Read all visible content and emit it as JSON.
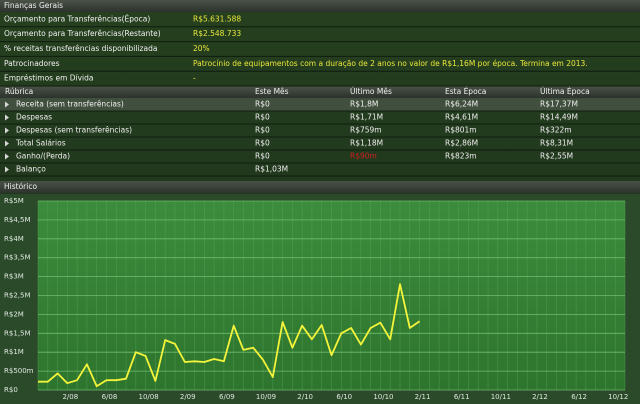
{
  "summary": {
    "title": "Finanças Gerais",
    "rows": [
      [
        "Orçamento para Transferências(Época)",
        "R$5.631.588"
      ],
      [
        "Orçamento para Transferências(Restante)",
        "R$2.548.733"
      ],
      [
        "% receitas transferências disponibilizada",
        "20%"
      ],
      [
        "Patrocinadores",
        "Patrocínio de equipamentos com a duração de 2 anos no valor de R$1,16M por época. Termina em 2013."
      ],
      [
        "Empréstimos em Dívida",
        "-"
      ]
    ]
  },
  "table": {
    "header": [
      "Rúbrica",
      "Este Mês",
      "Último Mês",
      "Esta Época",
      "Última Época"
    ],
    "rows": [
      [
        "Receita (sem transferências)",
        "R$0",
        "R$1,8M",
        "R$6,24M",
        "R$17,37M"
      ],
      [
        "Despesas",
        "R$0",
        "R$1,71M",
        "R$4,61M",
        "R$14,49M"
      ],
      [
        "Despesas (sem transferências)",
        "R$0",
        "R$759m",
        "R$801m",
        "R$322m"
      ],
      [
        "Total Salários",
        "R$0",
        "R$1,18M",
        "R$2,86M",
        "R$8,31M"
      ],
      [
        "Ganho/(Perda)",
        "R$0",
        "R$90m",
        "R$823m",
        "R$2,55M"
      ],
      [
        "Balanço",
        "R$1,03M"
      ]
    ]
  },
  "history": {
    "title": "Histórico"
  },
  "chart_data": {
    "type": "line",
    "color": "#f4f43a",
    "grid": true,
    "categories": [
      null,
      null,
      null,
      "2/08",
      null,
      null,
      null,
      "6/08",
      null,
      null,
      null,
      "10/08",
      null,
      null,
      null,
      "2/09",
      null,
      null,
      null,
      "6/09",
      null,
      null,
      null,
      "10/09",
      null,
      null,
      null,
      "2/10",
      null,
      null,
      null,
      "6/10",
      null,
      null,
      null,
      "10/10",
      null,
      null,
      null,
      "2/11",
      null,
      null,
      null,
      "6/11",
      null,
      null,
      null,
      "10/11",
      null,
      null,
      null,
      "2/12",
      null,
      null,
      null,
      "6/12",
      null,
      null,
      null,
      "10/12",
      null
    ],
    "values": [
      220000,
      220000,
      440000,
      180000,
      260000,
      680000,
      100000,
      260000,
      260000,
      300000,
      1000000,
      900000,
      240000,
      1320000,
      1220000,
      740000,
      760000,
      740000,
      820000,
      760000,
      1700000,
      1060000,
      1120000,
      800000,
      340000,
      1800000,
      1120000,
      1700000,
      1340000,
      1720000,
      920000,
      1500000,
      1640000,
      1200000,
      1640000,
      1780000,
      1340000,
      2800000,
      1640000,
      1820000,
      null,
      null,
      null,
      null,
      null,
      null,
      null,
      null,
      null,
      null,
      null,
      null,
      null,
      null,
      null,
      null,
      null,
      null,
      null,
      null,
      null
    ],
    "ylim": [
      0,
      5000000
    ],
    "yticks": [
      {
        "value": 0,
        "label": "R$0"
      },
      {
        "value": 500000,
        "label": "R$500m"
      },
      {
        "value": 1000000,
        "label": "R$1M"
      },
      {
        "value": 1500000,
        "label": "R$1,5M"
      },
      {
        "value": 2000000,
        "label": "R$2M"
      },
      {
        "value": 2500000,
        "label": "R$2,5M"
      },
      {
        "value": 3000000,
        "label": "R$3M"
      },
      {
        "value": 3500000,
        "label": "R$3,5M"
      },
      {
        "value": 4000000,
        "label": "R$4M"
      },
      {
        "value": 4500000,
        "label": "R$4,5M"
      },
      {
        "value": 5000000,
        "label": "R$5M"
      }
    ]
  }
}
